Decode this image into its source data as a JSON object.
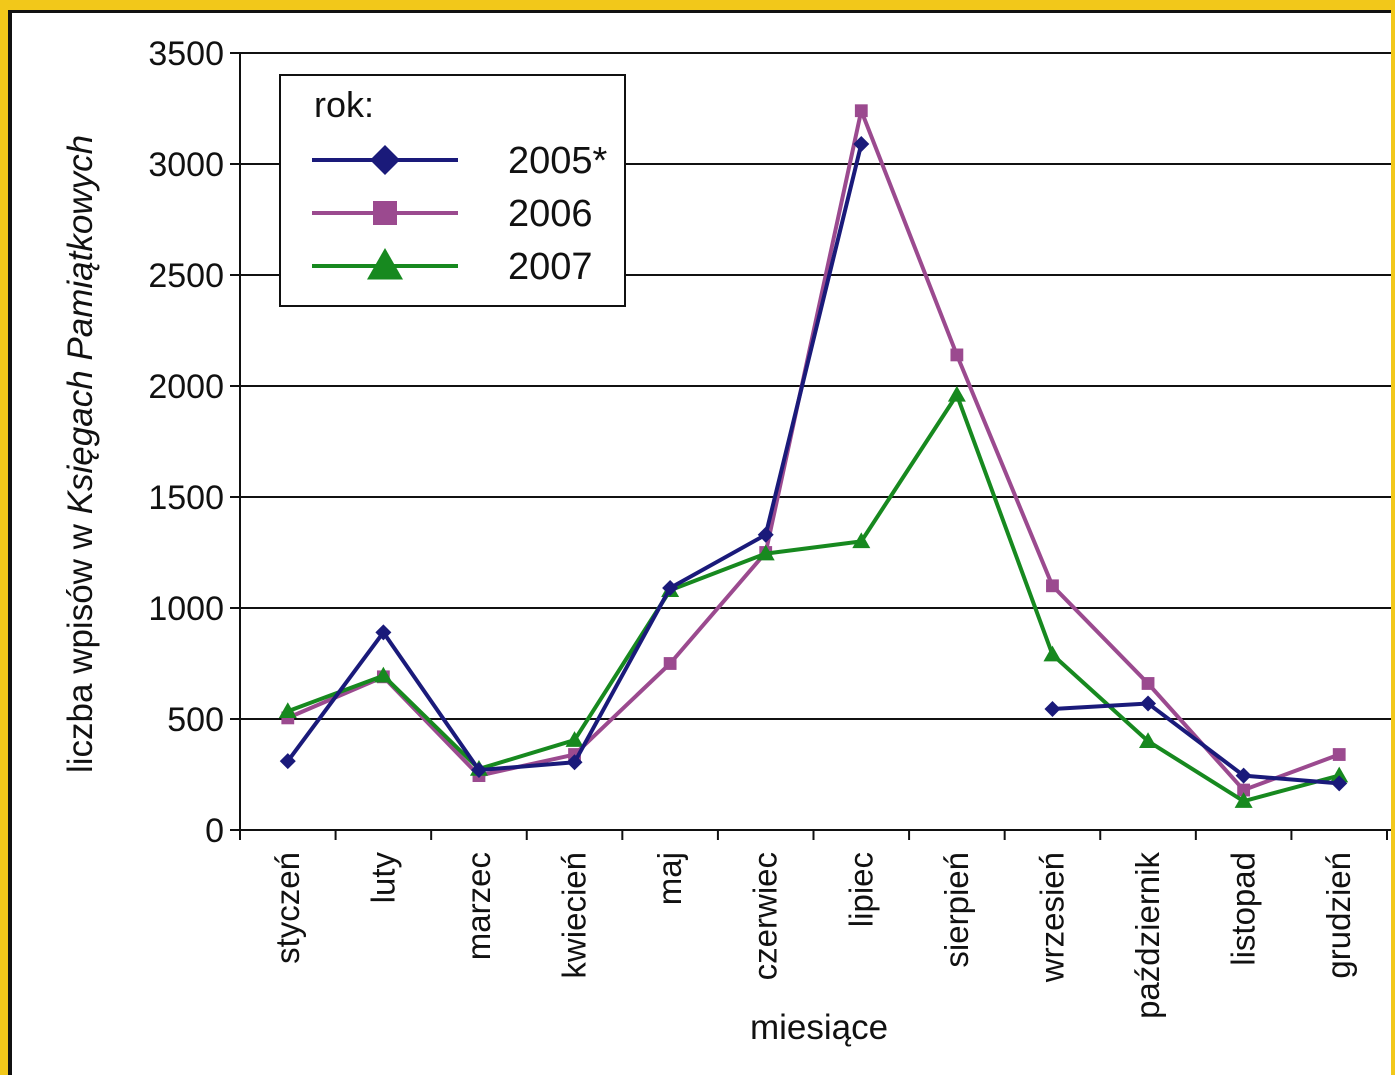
{
  "chart_data": {
    "type": "line",
    "xlabel": "miesiące",
    "ylabel_prefix": "liczba wpisów w ",
    "ylabel_italic": "Księgach Pamiątkowych",
    "ylim": [
      0,
      3500
    ],
    "yticks": [
      0,
      500,
      1000,
      1500,
      2000,
      2500,
      3000,
      3500
    ],
    "categories": [
      "styczeń",
      "luty",
      "marzec",
      "kwiecień",
      "maj",
      "czerwiec",
      "lipiec",
      "sierpień",
      "wrzesień",
      "październik",
      "listopad",
      "grudzień"
    ],
    "grid": "horizontal",
    "legend": {
      "position": "top-left",
      "title": "rok:"
    },
    "series": [
      {
        "name": "2005*",
        "color": "#1a1a7a",
        "marker": "diamond",
        "segments": [
          [
            310,
            890,
            270,
            305,
            1090,
            1330,
            3090,
            2140
          ],
          null
        ],
        "values": [
          310,
          890,
          270,
          305,
          1090,
          1330,
          3090,
          2140,
          545,
          570,
          245,
          210
        ],
        "break_after_index": 7
      },
      {
        "name": "2006",
        "color": "#9b4a8f",
        "marker": "square",
        "values": [
          505,
          690,
          245,
          340,
          750,
          1250,
          3240,
          2140,
          1100,
          660,
          180,
          340
        ]
      },
      {
        "name": "2007",
        "color": "#17891f",
        "marker": "triangle",
        "values": [
          535,
          695,
          275,
          405,
          1080,
          1245,
          1300,
          1960,
          790,
          400,
          130,
          245
        ]
      }
    ]
  }
}
